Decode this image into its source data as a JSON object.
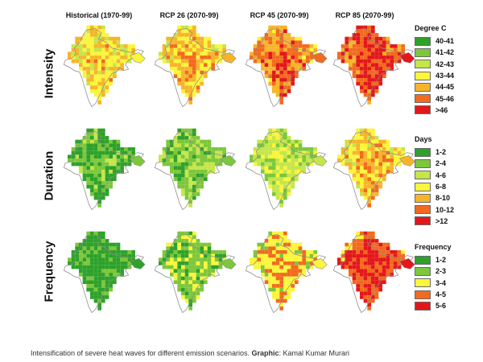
{
  "columns": [
    "Historical (1970-99)",
    "RCP 26 (2070-99)",
    "RCP 45 (2070-99)",
    "RCP 85 (2070-99)"
  ],
  "rows": [
    {
      "label": "Intensity",
      "legend_title": "Degree C",
      "legend": [
        {
          "label": "40-41",
          "color": "#2ea12a"
        },
        {
          "label": "41-42",
          "color": "#7cc73b"
        },
        {
          "label": "42-43",
          "color": "#c4e64a"
        },
        {
          "label": "43-44",
          "color": "#fbf53b"
        },
        {
          "label": "44-45",
          "color": "#f7b42a"
        },
        {
          "label": "45-46",
          "color": "#f26a1e"
        },
        {
          "label": ">46",
          "color": "#e3171b"
        }
      ],
      "levels": [
        0.55,
        0.62,
        0.75,
        0.88
      ]
    },
    {
      "label": "Duration",
      "legend_title": "Days",
      "legend": [
        {
          "label": "1-2",
          "color": "#2ea12a"
        },
        {
          "label": "2-4",
          "color": "#7cc73b"
        },
        {
          "label": "4-6",
          "color": "#c4e64a"
        },
        {
          "label": "6-8",
          "color": "#fbf53b"
        },
        {
          "label": "8-10",
          "color": "#f7b42a"
        },
        {
          "label": "10-12",
          "color": "#f26a1e"
        },
        {
          "label": ">12",
          "color": "#e3171b"
        }
      ],
      "levels": [
        0.15,
        0.25,
        0.35,
        0.6
      ]
    },
    {
      "label": "Frequency",
      "legend_title": "Frequency",
      "legend": [
        {
          "label": "1-2",
          "color": "#2ea12a"
        },
        {
          "label": "2-3",
          "color": "#7cc73b"
        },
        {
          "label": "3-4",
          "color": "#fbf53b"
        },
        {
          "label": "4-5",
          "color": "#f26a1e"
        },
        {
          "label": "5-6",
          "color": "#e3171b"
        }
      ],
      "levels": [
        0.12,
        0.3,
        0.55,
        0.8
      ]
    }
  ],
  "caption": {
    "text": "Intensification of severe heat waves for different emission scenarios.",
    "credit_label": "Graphic",
    "credit_name": ": Kamal Kumar Murari"
  }
}
